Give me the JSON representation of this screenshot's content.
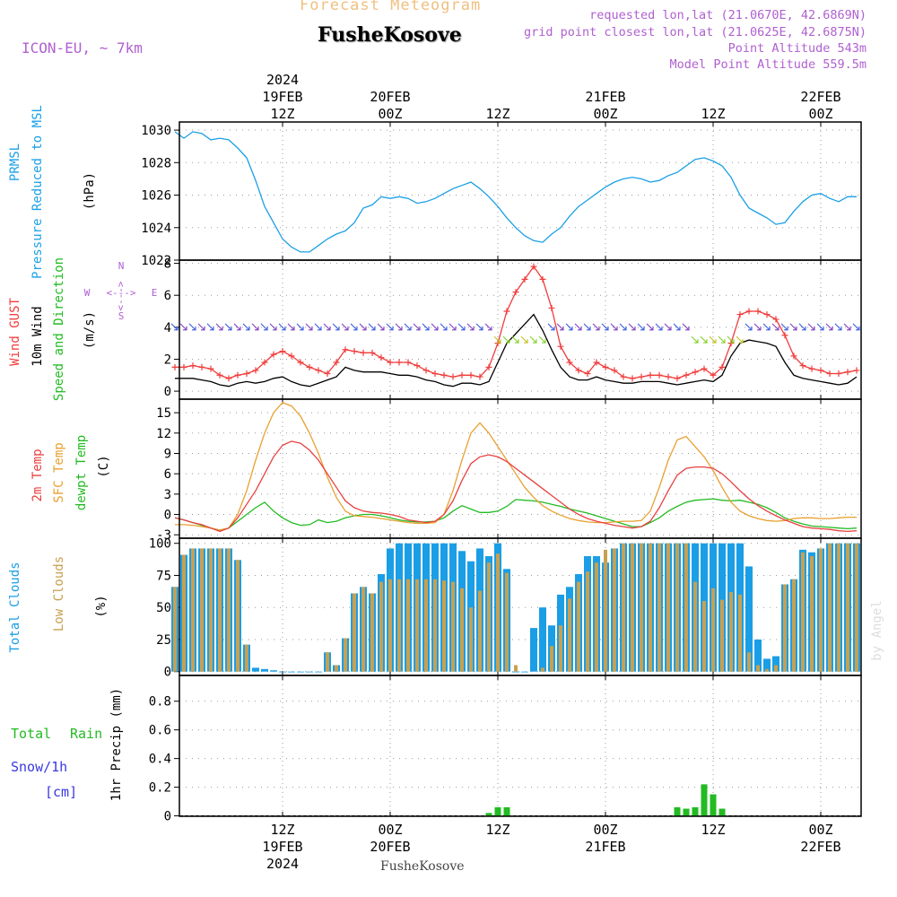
{
  "header": {
    "app_title": "Forecast Meteogram",
    "station": "FusheKosove",
    "model": "ICON-EU, ~ 7km",
    "requested": "requested lon,lat (21.0670E, 42.6869N)",
    "closest": "grid point closest lon,lat (21.0625E, 42.6875N)",
    "altitude": "Point Altitude 543m",
    "model_altitude": "Model Point Altitude 559.5m",
    "watermark": "by Angel",
    "footer_station": "FusheKosove"
  },
  "colors": {
    "pressure": "#1aa0e6",
    "gust": "#f03c3c",
    "wind": "#000000",
    "direction": "#22bb22",
    "temp2m": "#e84040",
    "sfc": "#e8a030",
    "dewpt": "#22bb22",
    "total_clouds": "#1a9ee6",
    "low_clouds": "#c8a050",
    "rain": "#22bb22",
    "snow": "#3838e0",
    "header_purple": "#b060d0",
    "header_title": "#f0c080"
  },
  "chart_data": [
    {
      "type": "line",
      "panel": "pressure",
      "ylabels": [
        "PRMSL",
        "Pressure Reduced to MSL",
        "(hPa)"
      ],
      "y_ticks": [
        "1022",
        "1024",
        "1026",
        "1028",
        "1030"
      ],
      "ylim": [
        1022,
        1030.5
      ],
      "x_hours": [
        0,
        1,
        2,
        3,
        4,
        5,
        6,
        7,
        8,
        9,
        10,
        11,
        12,
        13,
        14,
        15,
        16,
        17,
        18,
        19,
        20,
        21,
        22,
        23,
        24,
        25,
        26,
        27,
        28,
        29,
        30,
        31,
        32,
        33,
        34,
        35,
        36,
        37,
        38,
        39,
        40,
        41,
        42,
        43,
        44,
        45,
        46,
        47,
        48,
        49,
        50,
        51,
        52,
        53,
        54,
        55,
        56,
        57,
        58,
        59,
        60,
        61,
        62,
        63,
        64,
        65,
        66,
        67,
        68,
        69,
        70,
        71,
        72,
        73,
        74,
        75,
        76
      ],
      "series": [
        {
          "name": "PRMSL",
          "values": [
            1029.9,
            1029.5,
            1029.9,
            1029.8,
            1029.4,
            1029.5,
            1029.4,
            1028.9,
            1028.3,
            1026.9,
            1025.3,
            1024.3,
            1023.3,
            1022.8,
            1022.5,
            1022.5,
            1022.9,
            1023.3,
            1023.6,
            1023.8,
            1024.3,
            1025.2,
            1025.4,
            1025.9,
            1025.8,
            1025.9,
            1025.8,
            1025.5,
            1025.6,
            1025.8,
            1026.1,
            1026.4,
            1026.6,
            1026.8,
            1026.4,
            1025.9,
            1025.3,
            1024.6,
            1024.0,
            1023.5,
            1023.2,
            1023.1,
            1023.6,
            1024.0,
            1024.7,
            1025.3,
            1025.7,
            1026.1,
            1026.5,
            1026.8,
            1027.0,
            1027.1,
            1027.0,
            1026.8,
            1026.9,
            1027.2,
            1027.4,
            1027.8,
            1028.2,
            1028.3,
            1028.1,
            1027.8,
            1027.1,
            1026.0,
            1025.2,
            1024.9,
            1024.6,
            1024.2,
            1024.3,
            1025.0,
            1025.6,
            1026.0,
            1026.1,
            1025.8,
            1025.6,
            1025.9,
            1025.9
          ]
        }
      ]
    },
    {
      "type": "line",
      "panel": "wind",
      "ylabels": [
        "Wind GUST",
        "10m Wind",
        "Speed and Direction",
        "(m/s)"
      ],
      "y_ticks": [
        "0",
        "2",
        "4",
        "6",
        "8"
      ],
      "ylim": [
        -0.5,
        8.2
      ],
      "compass": [
        "N",
        "W",
        "E",
        "S"
      ],
      "compass_arrows": [
        "<--->"
      ],
      "x_hours": [
        0,
        1,
        2,
        3,
        4,
        5,
        6,
        7,
        8,
        9,
        10,
        11,
        12,
        13,
        14,
        15,
        16,
        17,
        18,
        19,
        20,
        21,
        22,
        23,
        24,
        25,
        26,
        27,
        28,
        29,
        30,
        31,
        32,
        33,
        34,
        35,
        36,
        37,
        38,
        39,
        40,
        41,
        42,
        43,
        44,
        45,
        46,
        47,
        48,
        49,
        50,
        51,
        52,
        53,
        54,
        55,
        56,
        57,
        58,
        59,
        60,
        61,
        62,
        63,
        64,
        65,
        66,
        67,
        68,
        69,
        70,
        71,
        72,
        73,
        74,
        75,
        76
      ],
      "series": [
        {
          "name": "Wind GUST",
          "values": [
            1.5,
            1.5,
            1.6,
            1.5,
            1.4,
            1.0,
            0.8,
            1.0,
            1.1,
            1.3,
            1.8,
            2.3,
            2.5,
            2.2,
            1.8,
            1.5,
            1.3,
            1.1,
            1.8,
            2.6,
            2.5,
            2.4,
            2.4,
            2.1,
            1.8,
            1.8,
            1.8,
            1.6,
            1.3,
            1.1,
            1.0,
            0.9,
            1.0,
            1.0,
            0.9,
            1.5,
            3.0,
            5.0,
            6.2,
            7.0,
            7.8,
            7.0,
            5.2,
            2.8,
            1.8,
            1.3,
            1.1,
            1.8,
            1.5,
            1.3,
            0.9,
            0.8,
            0.9,
            1.0,
            1.0,
            0.9,
            0.8,
            1.0,
            1.2,
            1.4,
            1.0,
            1.5,
            3.0,
            4.8,
            5.0,
            5.0,
            4.8,
            4.5,
            3.5,
            2.2,
            1.6,
            1.4,
            1.3,
            1.1,
            1.1,
            1.2,
            1.3
          ]
        },
        {
          "name": "10m Wind",
          "values": [
            0.8,
            0.8,
            0.8,
            0.7,
            0.6,
            0.4,
            0.3,
            0.5,
            0.6,
            0.5,
            0.6,
            0.8,
            0.9,
            0.6,
            0.4,
            0.3,
            0.5,
            0.7,
            0.9,
            1.5,
            1.3,
            1.2,
            1.2,
            1.2,
            1.1,
            1.0,
            1.0,
            0.9,
            0.7,
            0.6,
            0.4,
            0.3,
            0.5,
            0.5,
            0.4,
            0.6,
            1.8,
            3.0,
            3.6,
            4.2,
            4.8,
            3.8,
            2.6,
            1.5,
            0.9,
            0.7,
            0.7,
            0.9,
            0.7,
            0.6,
            0.5,
            0.5,
            0.6,
            0.6,
            0.6,
            0.5,
            0.4,
            0.5,
            0.6,
            0.7,
            0.6,
            1.0,
            2.2,
            3.0,
            3.2,
            3.1,
            3.0,
            2.8,
            1.8,
            1.0,
            0.8,
            0.7,
            0.6,
            0.5,
            0.4,
            0.5,
            0.9
          ]
        }
      ]
    },
    {
      "type": "line",
      "panel": "temperature",
      "ylabels": [
        "2m Temp",
        "SFC Temp",
        "dewpt Temp",
        "(C)"
      ],
      "y_ticks": [
        "-3",
        "0",
        "3",
        "6",
        "9",
        "12",
        "15"
      ],
      "ylim": [
        -3.5,
        17
      ],
      "x_hours": [
        0,
        1,
        2,
        3,
        4,
        5,
        6,
        7,
        8,
        9,
        10,
        11,
        12,
        13,
        14,
        15,
        16,
        17,
        18,
        19,
        20,
        21,
        22,
        23,
        24,
        25,
        26,
        27,
        28,
        29,
        30,
        31,
        32,
        33,
        34,
        35,
        36,
        37,
        38,
        39,
        40,
        41,
        42,
        43,
        44,
        45,
        46,
        47,
        48,
        49,
        50,
        51,
        52,
        53,
        54,
        55,
        56,
        57,
        58,
        59,
        60,
        61,
        62,
        63,
        64,
        65,
        66,
        67,
        68,
        69,
        70,
        71,
        72,
        73,
        74,
        75,
        76
      ],
      "series": [
        {
          "name": "2m Temp",
          "values": [
            -0.5,
            -0.8,
            -1.2,
            -1.5,
            -2.0,
            -2.5,
            -2.0,
            -0.5,
            1.5,
            3.5,
            6.0,
            8.5,
            10.2,
            10.8,
            10.5,
            9.5,
            8.0,
            6.0,
            4.0,
            2.0,
            1.0,
            0.5,
            0.3,
            0.2,
            0.0,
            -0.3,
            -0.8,
            -1.0,
            -1.2,
            -1.0,
            0.0,
            2.0,
            5.0,
            7.5,
            8.5,
            8.8,
            8.5,
            7.8,
            6.8,
            5.8,
            4.8,
            3.8,
            2.8,
            1.8,
            0.8,
            0.0,
            -0.6,
            -1.0,
            -1.3,
            -1.6,
            -1.8,
            -2.0,
            -1.8,
            -1.0,
            1.0,
            3.5,
            5.8,
            6.8,
            7.0,
            7.0,
            6.8,
            6.0,
            4.8,
            3.5,
            2.3,
            1.3,
            0.5,
            -0.2,
            -0.8,
            -1.3,
            -1.8,
            -2.0,
            -2.1,
            -2.2,
            -2.4,
            -2.5,
            -2.4
          ]
        },
        {
          "name": "SFC Temp",
          "values": [
            -1.5,
            -1.5,
            -1.6,
            -1.8,
            -2.0,
            -2.3,
            -2.0,
            0.0,
            3.5,
            8.0,
            12.0,
            15.0,
            16.5,
            16.0,
            14.5,
            12.0,
            9.0,
            5.5,
            2.5,
            0.5,
            -0.2,
            -0.3,
            -0.4,
            -0.6,
            -0.8,
            -1.0,
            -1.2,
            -1.3,
            -1.3,
            -1.2,
            0.0,
            3.5,
            8.0,
            12.0,
            13.5,
            12.0,
            10.0,
            8.0,
            6.0,
            4.0,
            2.5,
            1.3,
            0.5,
            -0.1,
            -0.6,
            -0.9,
            -1.1,
            -1.2,
            -1.2,
            -1.1,
            -1.0,
            -1.0,
            -0.9,
            0.5,
            4.0,
            8.0,
            11.0,
            11.5,
            10.0,
            8.5,
            6.5,
            4.0,
            1.8,
            0.5,
            -0.2,
            -0.6,
            -0.9,
            -1.0,
            -0.9,
            -0.6,
            -0.5,
            -0.5,
            -0.6,
            -0.6,
            -0.5,
            -0.4,
            -0.4
          ]
        },
        {
          "name": "dewpt Temp",
          "values": [
            -0.5,
            -0.8,
            -1.2,
            -1.6,
            -2.0,
            -2.3,
            -2.0,
            -1.0,
            0.0,
            1.0,
            1.8,
            0.5,
            -0.5,
            -1.2,
            -1.6,
            -1.5,
            -0.8,
            -1.2,
            -1.0,
            -0.5,
            -0.2,
            0.0,
            0.0,
            -0.2,
            -0.5,
            -0.8,
            -1.0,
            -1.1,
            -1.1,
            -1.0,
            -0.5,
            0.5,
            1.3,
            0.8,
            0.3,
            0.3,
            0.5,
            1.2,
            2.2,
            2.1,
            2.0,
            1.8,
            1.5,
            1.2,
            0.8,
            0.5,
            0.2,
            -0.2,
            -0.6,
            -1.0,
            -1.4,
            -1.8,
            -1.8,
            -1.2,
            -0.5,
            0.5,
            1.2,
            1.8,
            2.1,
            2.2,
            2.3,
            2.1,
            2.0,
            2.1,
            1.8,
            1.5,
            1.0,
            0.3,
            -0.5,
            -1.0,
            -1.4,
            -1.7,
            -1.8,
            -1.9,
            -2.0,
            -2.1,
            -2.0
          ]
        }
      ]
    },
    {
      "type": "bar",
      "panel": "clouds",
      "ylabels": [
        "Total Clouds",
        "Low Clouds",
        "(%)"
      ],
      "y_ticks": [
        "0",
        "25",
        "50",
        "75",
        "100"
      ],
      "ylim": [
        -3,
        104
      ],
      "x_hours": [
        0,
        1,
        2,
        3,
        4,
        5,
        6,
        7,
        8,
        9,
        10,
        11,
        12,
        13,
        14,
        15,
        16,
        17,
        18,
        19,
        20,
        21,
        22,
        23,
        24,
        25,
        26,
        27,
        28,
        29,
        30,
        31,
        32,
        33,
        34,
        35,
        36,
        37,
        38,
        39,
        40,
        41,
        42,
        43,
        44,
        45,
        46,
        47,
        48,
        49,
        50,
        51,
        52,
        53,
        54,
        55,
        56,
        57,
        58,
        59,
        60,
        61,
        62,
        63,
        64,
        65,
        66,
        67,
        68,
        69,
        70,
        71,
        72,
        73,
        74,
        75,
        76
      ],
      "series": [
        {
          "name": "Total Clouds",
          "values": [
            66,
            91,
            96,
            96,
            96,
            96,
            96,
            87,
            21,
            3,
            2,
            1,
            0,
            0,
            0,
            0,
            0,
            15,
            5,
            26,
            61,
            66,
            61,
            76,
            96,
            100,
            100,
            100,
            100,
            100,
            100,
            100,
            94,
            86,
            96,
            90,
            100,
            80,
            0,
            0,
            34,
            50,
            36,
            60,
            66,
            76,
            90,
            90,
            85,
            96,
            100,
            100,
            100,
            100,
            100,
            100,
            100,
            100,
            100,
            100,
            100,
            100,
            100,
            100,
            82,
            25,
            10,
            12,
            68,
            72,
            95,
            93,
            96,
            100,
            100,
            100,
            100
          ]
        },
        {
          "name": "Low Clouds",
          "values": [
            66,
            91,
            96,
            96,
            96,
            96,
            96,
            87,
            21,
            0,
            0,
            0,
            0,
            0,
            0,
            0,
            0,
            15,
            5,
            26,
            61,
            66,
            61,
            70,
            72,
            72,
            72,
            72,
            72,
            72,
            71,
            70,
            65,
            50,
            63,
            85,
            92,
            77,
            5,
            0,
            0,
            3,
            20,
            36,
            57,
            70,
            78,
            85,
            95,
            96,
            100,
            100,
            100,
            100,
            100,
            100,
            100,
            100,
            70,
            55,
            65,
            56,
            62,
            60,
            15,
            5,
            2,
            5,
            68,
            72,
            93,
            90,
            96,
            100,
            100,
            100,
            100
          ]
        }
      ]
    },
    {
      "type": "bar",
      "panel": "precipitation",
      "ylabels": [
        "Total",
        "Rain",
        "Snow/1h",
        "[cm]",
        "1hr Precip (mm)"
      ],
      "y_ticks": [
        "0",
        "0.2",
        "0.4",
        "0.6",
        "0.8"
      ],
      "ylim": [
        -0.003,
        0.98
      ],
      "x_hours": [
        35,
        36,
        37,
        56,
        57,
        58,
        59,
        60,
        61
      ],
      "series": [
        {
          "name": "Total Rain",
          "values": [
            0.02,
            0.06,
            0.06,
            0.06,
            0.05,
            0.06,
            0.22,
            0.15,
            0.05
          ]
        }
      ]
    }
  ],
  "x_axis": {
    "major_ticks": [
      {
        "hour": 12,
        "top": [
          "2024",
          "19FEB",
          "12Z"
        ],
        "bottom": [
          "12Z",
          "19FEB",
          "2024"
        ]
      },
      {
        "hour": 24,
        "top": [
          "20FEB",
          "00Z"
        ],
        "bottom": [
          "00Z",
          "20FEB"
        ]
      },
      {
        "hour": 36,
        "top": [
          "12Z"
        ],
        "bottom": [
          "12Z"
        ]
      },
      {
        "hour": 48,
        "top": [
          "21FEB",
          "00Z"
        ],
        "bottom": [
          "00Z",
          "21FEB"
        ]
      },
      {
        "hour": 60,
        "top": [
          "12Z"
        ],
        "bottom": [
          "12Z"
        ]
      },
      {
        "hour": 72,
        "top": [
          "22FEB",
          "00Z"
        ],
        "bottom": [
          "00Z",
          "22FEB"
        ]
      }
    ]
  }
}
